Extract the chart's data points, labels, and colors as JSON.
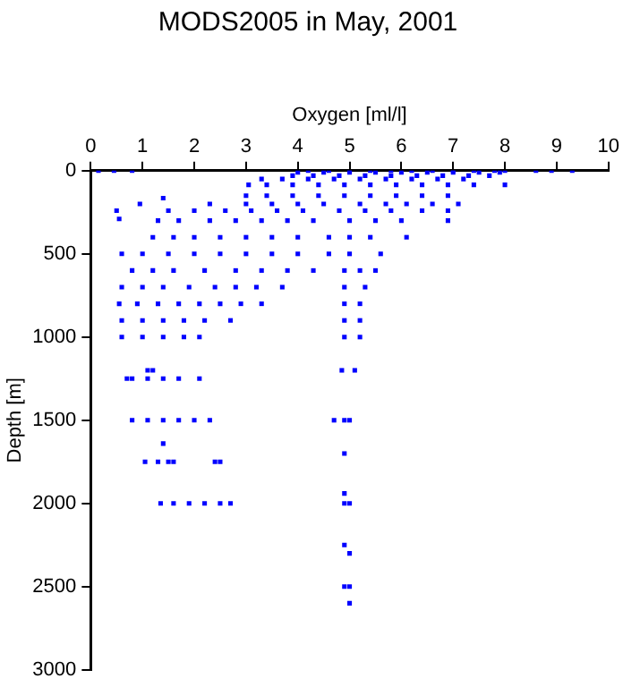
{
  "chart_data": {
    "type": "scatter",
    "title": "MODS2005 in May, 2001",
    "xlabel": "Oxygen [ml/l]",
    "ylabel": "Depth [m]",
    "xlim": [
      0,
      10
    ],
    "xticks": [
      0,
      1,
      2,
      3,
      4,
      5,
      6,
      7,
      8,
      9,
      10
    ],
    "ylim": [
      3000,
      0
    ],
    "yticks": [
      0,
      500,
      1000,
      1500,
      2000,
      2500,
      3000
    ],
    "grid": false,
    "legend": false,
    "marker": "square",
    "series": [
      {
        "color": "#0000ff",
        "x": [
          0.15,
          0.45,
          0.8,
          4.2,
          4.6,
          5.0,
          5.4,
          5.8,
          6.2,
          6.6,
          7.0,
          7.4,
          7.8,
          8.0,
          8.6,
          8.9,
          9.3,
          4.0,
          4.5,
          5.0,
          5.5,
          6.0,
          6.5,
          7.0,
          7.5,
          7.9,
          3.9,
          4.3,
          4.8,
          5.3,
          5.8,
          6.3,
          6.8,
          7.3,
          7.7,
          3.3,
          3.7,
          4.2,
          4.7,
          5.2,
          5.7,
          6.2,
          6.7,
          7.2,
          3.05,
          3.4,
          3.9,
          4.4,
          4.9,
          5.4,
          5.9,
          6.4,
          6.9,
          7.4,
          8.0,
          3.0,
          3.4,
          3.9,
          4.4,
          4.9,
          5.4,
          5.9,
          6.4,
          6.9,
          1.4,
          0.95,
          2.3,
          3.0,
          3.5,
          4.0,
          4.5,
          5.2,
          5.7,
          6.1,
          6.6,
          7.1,
          0.5,
          1.5,
          2.0,
          2.6,
          3.1,
          3.6,
          4.1,
          4.8,
          5.3,
          5.8,
          6.4,
          6.9,
          0.55,
          1.3,
          1.7,
          2.3,
          2.8,
          3.3,
          3.8,
          4.3,
          5.0,
          5.5,
          6.0,
          6.9,
          1.2,
          1.6,
          2.0,
          2.5,
          3.0,
          3.5,
          4.0,
          4.6,
          5.0,
          5.4,
          6.1,
          0.6,
          1.0,
          1.5,
          2.0,
          2.5,
          3.0,
          3.5,
          4.0,
          4.6,
          5.0,
          5.6,
          0.8,
          1.2,
          1.6,
          2.2,
          2.8,
          3.3,
          3.8,
          4.3,
          4.9,
          5.2,
          5.5,
          0.6,
          1.0,
          1.4,
          1.9,
          2.4,
          2.8,
          3.2,
          3.7,
          4.9,
          5.3,
          0.55,
          0.9,
          1.3,
          1.7,
          2.1,
          2.5,
          2.9,
          3.3,
          4.9,
          5.2,
          0.6,
          1.0,
          1.4,
          1.8,
          2.2,
          2.7,
          4.9,
          5.2,
          0.6,
          1.0,
          1.4,
          1.8,
          2.1,
          4.9,
          5.2,
          1.1,
          1.2,
          4.85,
          5.1,
          0.7,
          0.8,
          1.1,
          1.4,
          1.7,
          2.1,
          0.8,
          1.1,
          1.4,
          1.7,
          2.0,
          2.3,
          4.7,
          4.9,
          5.0,
          1.4,
          4.9,
          1.05,
          1.3,
          1.5,
          1.6,
          2.4,
          2.5,
          4.9,
          1.35,
          1.6,
          1.9,
          2.2,
          2.5,
          2.7,
          4.9,
          5.0,
          4.9,
          5.0,
          4.9,
          5.0,
          5.0
        ],
        "values": [
          0,
          0,
          0,
          0,
          0,
          0,
          0,
          0,
          0,
          0,
          0,
          0,
          0,
          0,
          0,
          0,
          0,
          10,
          10,
          10,
          10,
          10,
          10,
          10,
          10,
          10,
          30,
          30,
          30,
          30,
          30,
          30,
          30,
          30,
          30,
          50,
          50,
          50,
          50,
          50,
          50,
          50,
          50,
          50,
          85,
          85,
          85,
          85,
          85,
          85,
          85,
          85,
          85,
          85,
          85,
          150,
          150,
          150,
          150,
          150,
          150,
          150,
          150,
          150,
          165,
          200,
          200,
          200,
          200,
          200,
          200,
          200,
          200,
          200,
          200,
          200,
          240,
          240,
          240,
          240,
          240,
          240,
          240,
          240,
          240,
          240,
          240,
          240,
          290,
          300,
          300,
          300,
          300,
          300,
          300,
          300,
          300,
          300,
          300,
          300,
          400,
          400,
          400,
          400,
          400,
          400,
          400,
          400,
          400,
          400,
          400,
          500,
          500,
          500,
          500,
          500,
          500,
          500,
          500,
          500,
          500,
          500,
          600,
          600,
          600,
          600,
          600,
          600,
          600,
          600,
          600,
          600,
          600,
          700,
          700,
          700,
          700,
          700,
          700,
          700,
          700,
          700,
          700,
          800,
          800,
          800,
          800,
          800,
          800,
          800,
          800,
          800,
          800,
          900,
          900,
          900,
          900,
          900,
          900,
          900,
          900,
          1000,
          1000,
          1000,
          1000,
          1000,
          1000,
          1000,
          1200,
          1200,
          1200,
          1200,
          1250,
          1250,
          1250,
          1250,
          1250,
          1250,
          1500,
          1500,
          1500,
          1500,
          1500,
          1500,
          1500,
          1500,
          1500,
          1640,
          1700,
          1750,
          1750,
          1750,
          1750,
          1750,
          1750,
          1940,
          2000,
          2000,
          2000,
          2000,
          2000,
          2000,
          2000,
          2000,
          2250,
          2300,
          2500,
          2500,
          2600
        ]
      }
    ]
  }
}
